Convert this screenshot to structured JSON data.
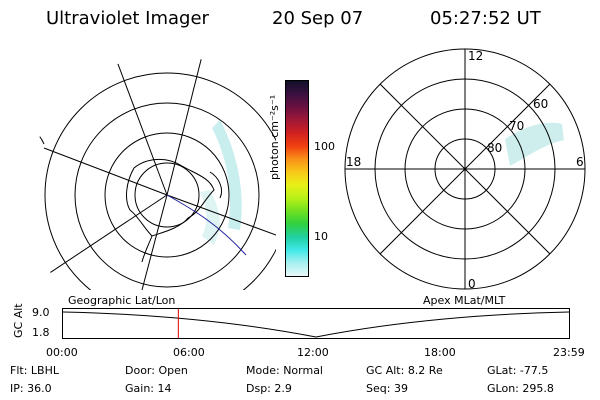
{
  "header": {
    "title": "Ultraviolet Imager",
    "date": "20 Sep 07",
    "time": "05:27:52 UT"
  },
  "colorbar": {
    "unit_label": "photon cm⁻²s⁻¹",
    "ticks": [
      "100",
      "10"
    ],
    "colors": [
      "#101028",
      "#3a1040",
      "#6a1040",
      "#a01838",
      "#d02020",
      "#f04010",
      "#f89018",
      "#f8c818",
      "#e8f018",
      "#b8f018",
      "#70e020",
      "#30d040",
      "#20d0a0",
      "#40e8e8",
      "#a8f0f0",
      "#e8f8f8"
    ]
  },
  "geo_map": {
    "label": "Geographic Lat/Lon"
  },
  "polar_plot": {
    "label": "Apex MLat/MLT",
    "mlt_labels": {
      "top": "12",
      "left": "18",
      "right": "6",
      "bottom": "0"
    },
    "lat_labels": [
      "80",
      "70",
      "60"
    ]
  },
  "timeline": {
    "ylabel": "GC Alt",
    "yticks": [
      "9.0",
      "1.8"
    ],
    "xticks": [
      "00:00",
      "06:00",
      "12:00",
      "18:00",
      "23:59"
    ],
    "current_time_fraction": 0.229,
    "min_alt_fraction": 0.5
  },
  "footer": {
    "rows": [
      [
        {
          "label": "Flt:",
          "value": "LBHL"
        },
        {
          "label": "Door:",
          "value": "Open"
        },
        {
          "label": "Mode:",
          "value": "Normal"
        },
        {
          "label": "GC Alt:",
          "value": "8.2 Re"
        },
        {
          "label": "GLat:",
          "value": "-77.5"
        }
      ],
      [
        {
          "label": "IP:",
          "value": "36.0"
        },
        {
          "label": "Gain:",
          "value": "14"
        },
        {
          "label": "Dsp:",
          "value": "2.9"
        },
        {
          "label": "Seq:",
          "value": "39"
        },
        {
          "label": "GLon:",
          "value": "295.8"
        }
      ]
    ]
  }
}
